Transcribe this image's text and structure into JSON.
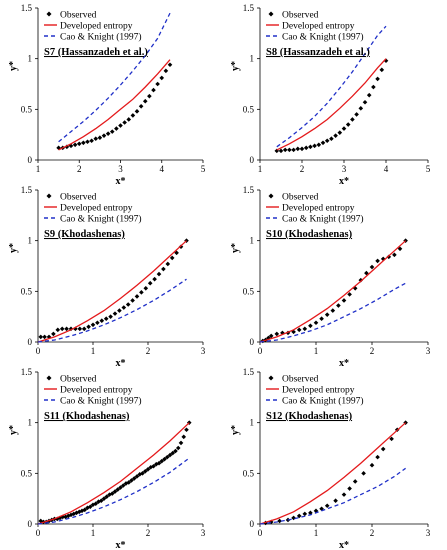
{
  "legend": {
    "observed": "Observed",
    "developed": "Developed entropy",
    "cao": "Cao & Knight (1997)"
  },
  "colors": {
    "observed": "#000000",
    "developed": "#e41a1c",
    "cao": "#2030c8"
  },
  "axis_labels": {
    "x": "x*",
    "y": "y*"
  },
  "chart_data": [
    {
      "type": "scatter",
      "title": "S7 (Hassanzadeh et al.)",
      "xlabel": "x*",
      "ylabel": "y*",
      "xlim": [
        1,
        5
      ],
      "ylim": [
        0,
        1.5
      ],
      "xticks": [
        1,
        2,
        3,
        4,
        5
      ],
      "yticks": [
        0,
        0.5,
        1,
        1.5
      ],
      "grid": false,
      "legend_position": "top-left",
      "series": [
        {
          "name": "Observed",
          "kind": "markers",
          "x": [
            1.5,
            1.6,
            1.7,
            1.8,
            1.9,
            2.0,
            2.1,
            2.2,
            2.3,
            2.4,
            2.5,
            2.6,
            2.7,
            2.8,
            2.9,
            3.0,
            3.1,
            3.2,
            3.3,
            3.4,
            3.5,
            3.6,
            3.7,
            3.8,
            3.9,
            4.0,
            4.1,
            4.2
          ],
          "y": [
            0.12,
            0.12,
            0.13,
            0.14,
            0.15,
            0.16,
            0.17,
            0.18,
            0.19,
            0.21,
            0.22,
            0.24,
            0.26,
            0.28,
            0.31,
            0.34,
            0.37,
            0.4,
            0.44,
            0.48,
            0.53,
            0.58,
            0.63,
            0.69,
            0.75,
            0.81,
            0.88,
            0.94
          ]
        },
        {
          "name": "Developed entropy",
          "kind": "line",
          "x": [
            1.5,
            1.8,
            2.1,
            2.4,
            2.7,
            3.0,
            3.3,
            3.6,
            3.9,
            4.2
          ],
          "y": [
            0.1,
            0.16,
            0.23,
            0.31,
            0.4,
            0.5,
            0.6,
            0.72,
            0.85,
            0.99
          ]
        },
        {
          "name": "Cao & Knight (1997)",
          "kind": "dashed",
          "x": [
            1.5,
            1.8,
            2.1,
            2.4,
            2.7,
            3.0,
            3.3,
            3.6,
            3.9,
            4.2
          ],
          "y": [
            0.18,
            0.28,
            0.38,
            0.49,
            0.61,
            0.74,
            0.88,
            1.03,
            1.2,
            1.45
          ]
        }
      ]
    },
    {
      "type": "scatter",
      "title": "S8 (Hassanzadeh et al.)",
      "xlabel": "x*",
      "ylabel": "y*",
      "xlim": [
        1,
        5
      ],
      "ylim": [
        0,
        1.5
      ],
      "xticks": [
        1,
        2,
        3,
        4,
        5
      ],
      "yticks": [
        0,
        0.5,
        1,
        1.5
      ],
      "grid": false,
      "legend_position": "top-left",
      "series": [
        {
          "name": "Observed",
          "kind": "markers",
          "x": [
            1.4,
            1.5,
            1.6,
            1.7,
            1.8,
            1.9,
            2.0,
            2.1,
            2.2,
            2.3,
            2.4,
            2.5,
            2.6,
            2.7,
            2.8,
            2.9,
            3.0,
            3.1,
            3.2,
            3.3,
            3.4,
            3.5,
            3.6,
            3.7,
            3.8,
            3.9,
            4.0
          ],
          "y": [
            0.09,
            0.09,
            0.1,
            0.1,
            0.1,
            0.11,
            0.11,
            0.12,
            0.13,
            0.14,
            0.15,
            0.17,
            0.19,
            0.21,
            0.24,
            0.27,
            0.31,
            0.35,
            0.4,
            0.45,
            0.51,
            0.57,
            0.64,
            0.72,
            0.8,
            0.89,
            0.98
          ]
        },
        {
          "name": "Developed entropy",
          "kind": "line",
          "x": [
            1.4,
            1.7,
            2.0,
            2.3,
            2.6,
            2.9,
            3.2,
            3.5,
            3.8,
            4.0
          ],
          "y": [
            0.1,
            0.16,
            0.23,
            0.31,
            0.4,
            0.51,
            0.63,
            0.76,
            0.91,
            1.0
          ]
        },
        {
          "name": "Cao & Knight (1997)",
          "kind": "dashed",
          "x": [
            1.4,
            1.7,
            2.0,
            2.3,
            2.6,
            2.9,
            3.2,
            3.5,
            3.8,
            4.0
          ],
          "y": [
            0.13,
            0.22,
            0.32,
            0.43,
            0.56,
            0.71,
            0.87,
            1.05,
            1.23,
            1.32
          ]
        }
      ]
    },
    {
      "type": "scatter",
      "title": "S9 (Khodashenas)",
      "xlabel": "x*",
      "ylabel": "y*",
      "xlim": [
        0,
        3
      ],
      "ylim": [
        0,
        1.5
      ],
      "xticks": [
        0,
        1,
        2,
        3
      ],
      "yticks": [
        0,
        0.5,
        1,
        1.5
      ],
      "grid": false,
      "legend_position": "top-left",
      "series": [
        {
          "name": "Observed",
          "kind": "markers",
          "x": [
            0.05,
            0.12,
            0.2,
            0.28,
            0.36,
            0.44,
            0.52,
            0.6,
            0.68,
            0.76,
            0.84,
            0.92,
            1.0,
            1.08,
            1.16,
            1.24,
            1.32,
            1.4,
            1.48,
            1.56,
            1.64,
            1.72,
            1.8,
            1.88,
            1.96,
            2.04,
            2.12,
            2.2,
            2.28,
            2.36,
            2.44,
            2.52,
            2.6,
            2.7
          ],
          "y": [
            0.05,
            0.05,
            0.05,
            0.08,
            0.12,
            0.13,
            0.13,
            0.13,
            0.13,
            0.13,
            0.13,
            0.15,
            0.17,
            0.19,
            0.21,
            0.23,
            0.25,
            0.28,
            0.31,
            0.34,
            0.37,
            0.41,
            0.45,
            0.49,
            0.53,
            0.58,
            0.62,
            0.67,
            0.72,
            0.77,
            0.83,
            0.88,
            0.94,
            1.0
          ]
        },
        {
          "name": "Developed entropy",
          "kind": "line",
          "x": [
            0,
            0.3,
            0.6,
            0.9,
            1.2,
            1.5,
            1.8,
            2.1,
            2.4,
            2.7
          ],
          "y": [
            0,
            0.05,
            0.12,
            0.21,
            0.31,
            0.43,
            0.56,
            0.7,
            0.85,
            1.0
          ]
        },
        {
          "name": "Cao & Knight (1997)",
          "kind": "dashed",
          "x": [
            0,
            0.3,
            0.6,
            0.9,
            1.2,
            1.5,
            1.8,
            2.1,
            2.4,
            2.7
          ],
          "y": [
            0,
            0.02,
            0.06,
            0.11,
            0.17,
            0.24,
            0.32,
            0.41,
            0.51,
            0.62
          ]
        }
      ]
    },
    {
      "type": "scatter",
      "title": "S10 (Khodashenas)",
      "xlabel": "x*",
      "ylabel": "y*",
      "xlim": [
        0,
        3
      ],
      "ylim": [
        0,
        1.5
      ],
      "xticks": [
        0,
        1,
        2,
        3
      ],
      "yticks": [
        0,
        0.5,
        1,
        1.5
      ],
      "grid": false,
      "legend_position": "top-left",
      "series": [
        {
          "name": "Observed",
          "kind": "markers",
          "x": [
            0.05,
            0.1,
            0.15,
            0.2,
            0.3,
            0.4,
            0.5,
            0.6,
            0.7,
            0.8,
            0.9,
            1.0,
            1.1,
            1.2,
            1.3,
            1.4,
            1.5,
            1.6,
            1.7,
            1.8,
            1.9,
            2.0,
            2.1,
            2.2,
            2.3,
            2.4,
            2.5,
            2.6
          ],
          "y": [
            0.01,
            0.02,
            0.04,
            0.06,
            0.08,
            0.09,
            0.09,
            0.1,
            0.12,
            0.13,
            0.16,
            0.19,
            0.23,
            0.27,
            0.31,
            0.36,
            0.41,
            0.47,
            0.53,
            0.61,
            0.68,
            0.74,
            0.8,
            0.82,
            0.84,
            0.86,
            0.92,
            1.0
          ]
        },
        {
          "name": "Developed entropy",
          "kind": "line",
          "x": [
            0,
            0.3,
            0.6,
            0.9,
            1.2,
            1.5,
            1.8,
            2.1,
            2.4,
            2.6
          ],
          "y": [
            0,
            0.05,
            0.12,
            0.22,
            0.33,
            0.46,
            0.6,
            0.75,
            0.9,
            1.0
          ]
        },
        {
          "name": "Cao & Knight (1997)",
          "kind": "dashed",
          "x": [
            0,
            0.3,
            0.6,
            0.9,
            1.2,
            1.5,
            1.8,
            2.1,
            2.4,
            2.6
          ],
          "y": [
            0,
            0.02,
            0.06,
            0.11,
            0.17,
            0.25,
            0.33,
            0.42,
            0.52,
            0.58
          ]
        }
      ]
    },
    {
      "type": "scatter",
      "title": "S11 (Khodashenas)",
      "xlabel": "x*",
      "ylabel": "y*",
      "xlim": [
        0,
        3
      ],
      "ylim": [
        0,
        1.5
      ],
      "xticks": [
        0,
        1,
        2,
        3
      ],
      "yticks": [
        0,
        0.5,
        1,
        1.5
      ],
      "grid": false,
      "legend_position": "top-left",
      "series": [
        {
          "name": "Observed",
          "kind": "markers",
          "x": [
            0.05,
            0.1,
            0.15,
            0.2,
            0.25,
            0.3,
            0.35,
            0.4,
            0.45,
            0.5,
            0.55,
            0.6,
            0.65,
            0.7,
            0.75,
            0.8,
            0.85,
            0.9,
            0.95,
            1.0,
            1.05,
            1.1,
            1.15,
            1.2,
            1.25,
            1.3,
            1.35,
            1.4,
            1.45,
            1.5,
            1.55,
            1.6,
            1.65,
            1.7,
            1.75,
            1.8,
            1.85,
            1.9,
            1.95,
            2.0,
            2.05,
            2.1,
            2.15,
            2.2,
            2.25,
            2.3,
            2.35,
            2.4,
            2.45,
            2.5,
            2.55,
            2.6,
            2.65,
            2.7,
            2.75
          ],
          "y": [
            0.03,
            0.02,
            0.02,
            0.03,
            0.04,
            0.05,
            0.05,
            0.06,
            0.07,
            0.07,
            0.08,
            0.09,
            0.1,
            0.11,
            0.12,
            0.13,
            0.14,
            0.16,
            0.17,
            0.19,
            0.2,
            0.22,
            0.23,
            0.25,
            0.27,
            0.29,
            0.3,
            0.32,
            0.34,
            0.36,
            0.38,
            0.4,
            0.41,
            0.43,
            0.45,
            0.47,
            0.49,
            0.5,
            0.52,
            0.54,
            0.56,
            0.57,
            0.59,
            0.6,
            0.62,
            0.64,
            0.66,
            0.68,
            0.7,
            0.72,
            0.75,
            0.8,
            0.86,
            0.93,
            1.0
          ]
        },
        {
          "name": "Developed entropy",
          "kind": "line",
          "x": [
            0,
            0.3,
            0.6,
            0.9,
            1.2,
            1.5,
            1.8,
            2.1,
            2.4,
            2.75
          ],
          "y": [
            0,
            0.05,
            0.12,
            0.21,
            0.31,
            0.42,
            0.55,
            0.68,
            0.82,
            1.0
          ]
        },
        {
          "name": "Cao & Knight (1997)",
          "kind": "dashed",
          "x": [
            0,
            0.3,
            0.6,
            0.9,
            1.2,
            1.5,
            1.8,
            2.1,
            2.4,
            2.75
          ],
          "y": [
            0,
            0.02,
            0.06,
            0.11,
            0.17,
            0.24,
            0.32,
            0.41,
            0.51,
            0.65
          ]
        }
      ]
    },
    {
      "type": "scatter",
      "title": "S12 (Khodashenas)",
      "xlabel": "x*",
      "ylabel": "y*",
      "xlim": [
        0,
        3
      ],
      "ylim": [
        0,
        1.5
      ],
      "xticks": [
        0,
        1,
        2,
        3
      ],
      "yticks": [
        0,
        0.5,
        1,
        1.5
      ],
      "grid": false,
      "legend_position": "top-left",
      "series": [
        {
          "name": "Observed",
          "kind": "markers",
          "x": [
            0.1,
            0.2,
            0.35,
            0.5,
            0.6,
            0.7,
            0.8,
            0.9,
            1.0,
            1.1,
            1.2,
            1.35,
            1.5,
            1.6,
            1.7,
            1.85,
            2.0,
            2.1,
            2.2,
            2.35,
            2.45,
            2.6
          ],
          "y": [
            0.01,
            0.02,
            0.03,
            0.04,
            0.06,
            0.08,
            0.1,
            0.11,
            0.13,
            0.15,
            0.18,
            0.23,
            0.29,
            0.35,
            0.42,
            0.5,
            0.58,
            0.66,
            0.74,
            0.84,
            0.93,
            1.0
          ]
        },
        {
          "name": "Developed entropy",
          "kind": "line",
          "x": [
            0,
            0.3,
            0.6,
            0.9,
            1.2,
            1.5,
            1.8,
            2.1,
            2.4,
            2.6
          ],
          "y": [
            0,
            0.05,
            0.12,
            0.22,
            0.33,
            0.46,
            0.6,
            0.75,
            0.9,
            1.0
          ]
        },
        {
          "name": "Cao & Knight (1997)",
          "kind": "dashed",
          "x": [
            0,
            0.3,
            0.6,
            0.9,
            1.2,
            1.5,
            1.8,
            2.1,
            2.4,
            2.6
          ],
          "y": [
            0,
            0.02,
            0.05,
            0.09,
            0.15,
            0.21,
            0.29,
            0.37,
            0.47,
            0.55
          ]
        }
      ]
    }
  ]
}
